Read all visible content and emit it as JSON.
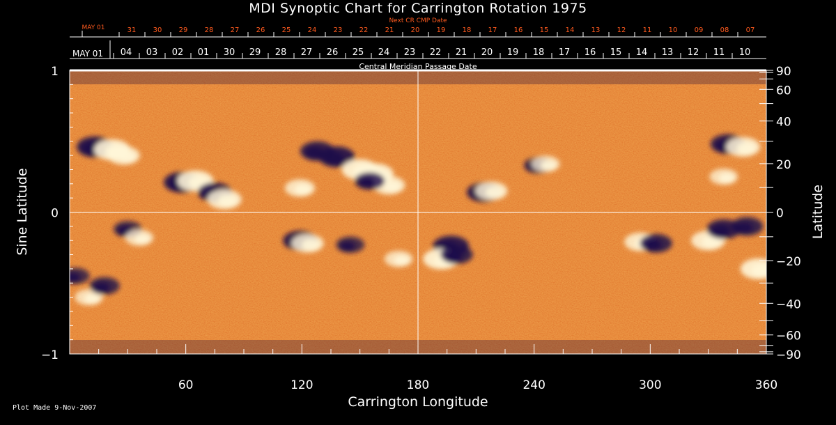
{
  "title": "MDI Synoptic Chart for Carrington Rotation 1975",
  "plot_made": "Plot Made  9-Nov-2007",
  "colors": {
    "background": "#000000",
    "next_cr_text": "#ff5a1e",
    "axis": "#ffffff",
    "map_base": "#d8531f",
    "map_dark": "#1c0a4a",
    "map_bright": "#fff6d8"
  },
  "chart_data": {
    "type": "heatmap",
    "title": "MDI Synoptic Chart for Carrington Rotation 1975",
    "xlabel": "Carrington Longitude",
    "ylabel_left": "Sine Latitude",
    "ylabel_right": "Latitude",
    "xlim": [
      0,
      360
    ],
    "ylim": [
      -1,
      1
    ],
    "x_ticks": [
      60,
      120,
      180,
      240,
      300,
      360
    ],
    "left_ticks": [
      {
        "value": 1,
        "label": "1"
      },
      {
        "value": 0,
        "label": "0"
      },
      {
        "value": -1,
        "label": "−1"
      }
    ],
    "right_ticks_deg": [
      {
        "deg": 90,
        "label": "90"
      },
      {
        "deg": 60,
        "label": "60"
      },
      {
        "deg": 40,
        "label": "40"
      },
      {
        "deg": 20,
        "label": "20"
      },
      {
        "deg": 0,
        "label": "0"
      },
      {
        "deg": -20,
        "label": "−20"
      },
      {
        "deg": -40,
        "label": "−40"
      },
      {
        "deg": -60,
        "label": "−60"
      },
      {
        "deg": -90,
        "label": "−90"
      }
    ],
    "next_cr_axis": {
      "title": "Next CR CMP Date",
      "first_label": "MAY 01",
      "labels": [
        "31",
        "30",
        "29",
        "28",
        "27",
        "26",
        "25",
        "24",
        "23",
        "22",
        "21",
        "20",
        "19",
        "18",
        "17",
        "16",
        "15",
        "14",
        "13",
        "12",
        "11",
        "10",
        "09",
        "08",
        "07"
      ]
    },
    "cmp_axis": {
      "title": "Central Meridian Passage Date",
      "first_label": "MAY 01",
      "labels": [
        "04",
        "03",
        "02",
        "01",
        "30",
        "29",
        "28",
        "27",
        "26",
        "25",
        "24",
        "23",
        "22",
        "21",
        "20",
        "19",
        "18",
        "17",
        "16",
        "15",
        "14",
        "13",
        "12",
        "11",
        "10"
      ]
    },
    "regions": [
      {
        "lon": 13,
        "sinlat": 0.46,
        "polarity": "negative",
        "strength": 1.0
      },
      {
        "lon": 22,
        "sinlat": 0.44,
        "polarity": "positive",
        "strength": 1.0
      },
      {
        "lon": 28,
        "sinlat": 0.4,
        "polarity": "positive",
        "strength": 0.8
      },
      {
        "lon": 58,
        "sinlat": 0.21,
        "polarity": "negative",
        "strength": 1.0
      },
      {
        "lon": 65,
        "sinlat": 0.22,
        "polarity": "positive",
        "strength": 1.0
      },
      {
        "lon": 75,
        "sinlat": 0.14,
        "polarity": "negative",
        "strength": 0.9
      },
      {
        "lon": 80,
        "sinlat": 0.09,
        "polarity": "positive",
        "strength": 0.9
      },
      {
        "lon": 119,
        "sinlat": 0.17,
        "polarity": "positive",
        "strength": 0.7
      },
      {
        "lon": 128,
        "sinlat": 0.43,
        "polarity": "negative",
        "strength": 0.9
      },
      {
        "lon": 138,
        "sinlat": 0.39,
        "polarity": "negative",
        "strength": 1.0
      },
      {
        "lon": 150,
        "sinlat": 0.3,
        "polarity": "positive",
        "strength": 1.0
      },
      {
        "lon": 158,
        "sinlat": 0.27,
        "polarity": "positive",
        "strength": 1.0
      },
      {
        "lon": 165,
        "sinlat": 0.19,
        "polarity": "positive",
        "strength": 0.8
      },
      {
        "lon": 155,
        "sinlat": 0.22,
        "polarity": "negative",
        "strength": 0.7
      },
      {
        "lon": 214,
        "sinlat": 0.14,
        "polarity": "negative",
        "strength": 0.9
      },
      {
        "lon": 218,
        "sinlat": 0.15,
        "polarity": "positive",
        "strength": 0.8
      },
      {
        "lon": 242,
        "sinlat": 0.33,
        "polarity": "negative",
        "strength": 0.6
      },
      {
        "lon": 246,
        "sinlat": 0.34,
        "polarity": "positive",
        "strength": 0.6
      },
      {
        "lon": 340,
        "sinlat": 0.48,
        "polarity": "negative",
        "strength": 0.9
      },
      {
        "lon": 348,
        "sinlat": 0.46,
        "polarity": "positive",
        "strength": 0.9
      },
      {
        "lon": 338,
        "sinlat": 0.25,
        "polarity": "positive",
        "strength": 0.6
      },
      {
        "lon": 30,
        "sinlat": -0.12,
        "polarity": "negative",
        "strength": 0.6
      },
      {
        "lon": 36,
        "sinlat": -0.18,
        "polarity": "positive",
        "strength": 0.6
      },
      {
        "lon": 119,
        "sinlat": -0.2,
        "polarity": "negative",
        "strength": 0.9
      },
      {
        "lon": 123,
        "sinlat": -0.22,
        "polarity": "positive",
        "strength": 0.8
      },
      {
        "lon": 145,
        "sinlat": -0.23,
        "polarity": "negative",
        "strength": 0.6
      },
      {
        "lon": 170,
        "sinlat": -0.33,
        "polarity": "positive",
        "strength": 0.6
      },
      {
        "lon": 197,
        "sinlat": -0.24,
        "polarity": "negative",
        "strength": 1.0
      },
      {
        "lon": 192,
        "sinlat": -0.33,
        "polarity": "positive",
        "strength": 1.0
      },
      {
        "lon": 200,
        "sinlat": -0.3,
        "polarity": "negative",
        "strength": 0.8
      },
      {
        "lon": 295,
        "sinlat": -0.21,
        "polarity": "positive",
        "strength": 0.8
      },
      {
        "lon": 303,
        "sinlat": -0.22,
        "polarity": "negative",
        "strength": 0.8
      },
      {
        "lon": 330,
        "sinlat": -0.2,
        "polarity": "positive",
        "strength": 0.9
      },
      {
        "lon": 338,
        "sinlat": -0.12,
        "polarity": "negative",
        "strength": 0.9
      },
      {
        "lon": 350,
        "sinlat": -0.1,
        "polarity": "negative",
        "strength": 0.8
      },
      {
        "lon": 356,
        "sinlat": -0.4,
        "polarity": "positive",
        "strength": 1.0
      },
      {
        "lon": 10,
        "sinlat": -0.6,
        "polarity": "positive",
        "strength": 0.6
      },
      {
        "lon": 18,
        "sinlat": -0.52,
        "polarity": "negative",
        "strength": 0.7
      },
      {
        "lon": 3,
        "sinlat": -0.45,
        "polarity": "negative",
        "strength": 0.6
      }
    ]
  }
}
